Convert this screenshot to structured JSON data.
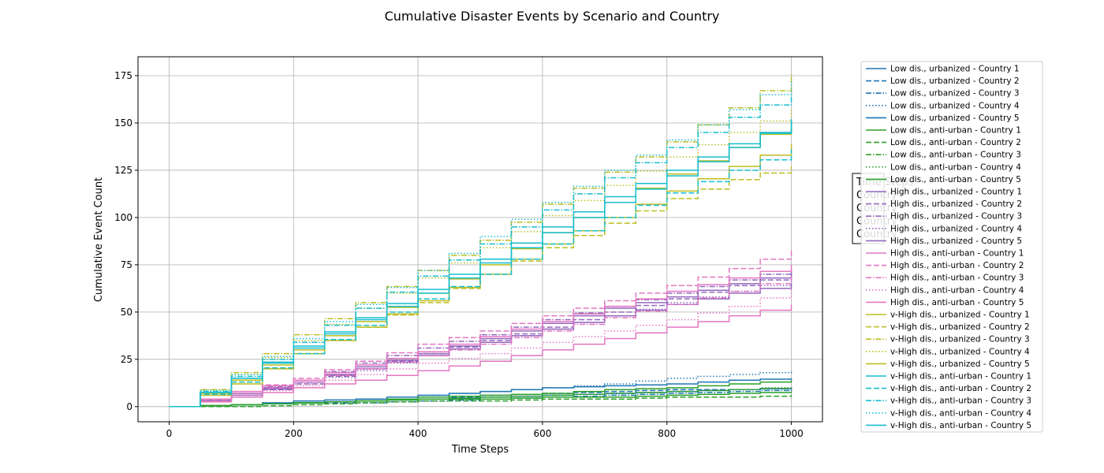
{
  "chart_data": {
    "type": "line",
    "title": "Cumulative Disaster Events by Scenario and Country",
    "xlabel": "Time Steps",
    "ylabel": "Cumulative Event Count",
    "xlim": [
      -50,
      1050
    ],
    "ylim": [
      -8,
      185
    ],
    "x_ticks": [
      0,
      200,
      400,
      600,
      800,
      1000
    ],
    "y_ticks": [
      0,
      25,
      50,
      75,
      100,
      125,
      150,
      175
    ],
    "grid": true,
    "legend_position": "outside-right",
    "side_box": {
      "lines": [
        "Time Steps",
        "Country",
        "Country",
        "Country",
        "Country"
      ]
    },
    "line_styles": {
      "solid": "",
      "dashed": "7,3",
      "dashdot": "7,2,1.5,2",
      "dotted": "1.5,2.5"
    },
    "series": [
      {
        "name": "Low dis., urbanized - Country 1",
        "color": "#1f77b4",
        "dash": "solid",
        "x": [
          0,
          100,
          200,
          300,
          400,
          500,
          600,
          700,
          800,
          900,
          1000
        ],
        "y": [
          0,
          1,
          3,
          4,
          6,
          8,
          10,
          11,
          12,
          14,
          15
        ]
      },
      {
        "name": "Low dis., urbanized - Country 2",
        "color": "#1f77b4",
        "dash": "dashed",
        "x": [
          0,
          100,
          200,
          300,
          400,
          500,
          600,
          700,
          800,
          900,
          1000
        ],
        "y": [
          0,
          1,
          2,
          3,
          4,
          6,
          7,
          8,
          9,
          9,
          10
        ]
      },
      {
        "name": "Low dis., urbanized - Country 3",
        "color": "#1f77b4",
        "dash": "dashdot",
        "x": [
          0,
          100,
          200,
          300,
          400,
          500,
          600,
          700,
          800,
          900,
          1000
        ],
        "y": [
          0,
          1,
          2,
          2,
          3,
          4,
          5,
          6,
          7,
          8,
          9
        ]
      },
      {
        "name": "Low dis., urbanized - Country 4",
        "color": "#1f77b4",
        "dash": "dotted",
        "x": [
          0,
          100,
          200,
          300,
          400,
          500,
          600,
          700,
          800,
          900,
          1000
        ],
        "y": [
          0,
          1,
          3,
          4,
          6,
          8,
          10,
          12,
          15,
          17,
          19
        ]
      },
      {
        "name": "Low dis., urbanized - Country 5",
        "color": "#1f77b4",
        "dash": "solid",
        "x": [
          0,
          100,
          200,
          300,
          400,
          500,
          600,
          700,
          800,
          900,
          1000
        ],
        "y": [
          0,
          1,
          2,
          3,
          4,
          5,
          6,
          7,
          8,
          9,
          10
        ]
      },
      {
        "name": "Low dis., anti-urban - Country 1",
        "color": "#2ca02c",
        "dash": "solid",
        "x": [
          0,
          100,
          200,
          300,
          400,
          500,
          600,
          700,
          800,
          900,
          1000
        ],
        "y": [
          0,
          1,
          2,
          3,
          5,
          6,
          7,
          9,
          10,
          12,
          14
        ]
      },
      {
        "name": "Low dis., anti-urban - Country 2",
        "color": "#2ca02c",
        "dash": "dashed",
        "x": [
          0,
          100,
          200,
          300,
          400,
          500,
          600,
          700,
          800,
          900,
          1000
        ],
        "y": [
          0,
          0,
          1,
          2,
          3,
          3,
          4,
          4,
          5,
          5,
          6
        ]
      },
      {
        "name": "Low dis., anti-urban - Country 3",
        "color": "#2ca02c",
        "dash": "dashdot",
        "x": [
          0,
          100,
          200,
          300,
          400,
          500,
          600,
          700,
          800,
          900,
          1000
        ],
        "y": [
          0,
          1,
          2,
          3,
          4,
          5,
          6,
          7,
          8,
          9,
          10
        ]
      },
      {
        "name": "Low dis., anti-urban - Country 4",
        "color": "#2ca02c",
        "dash": "dotted",
        "x": [
          0,
          100,
          200,
          300,
          400,
          500,
          600,
          700,
          800,
          900,
          1000
        ],
        "y": [
          0,
          1,
          2,
          3,
          4,
          5,
          6,
          7,
          8,
          9,
          11
        ]
      },
      {
        "name": "Low dis., anti-urban - Country 5",
        "color": "#2ca02c",
        "dash": "solid",
        "x": [
          0,
          100,
          200,
          300,
          400,
          500,
          600,
          700,
          800,
          900,
          1000
        ],
        "y": [
          0,
          1,
          2,
          3,
          4,
          4,
          5,
          5,
          6,
          7,
          8
        ]
      },
      {
        "name": "High dis., urbanized - Country 1",
        "color": "#9467bd",
        "dash": "solid",
        "x": [
          0,
          100,
          200,
          300,
          400,
          500,
          600,
          700,
          800,
          900,
          1000
        ],
        "y": [
          0,
          7,
          13,
          21,
          28,
          36,
          44,
          52,
          58,
          65,
          71
        ]
      },
      {
        "name": "High dis., urbanized - Country 2",
        "color": "#9467bd",
        "dash": "dashed",
        "x": [
          0,
          100,
          200,
          300,
          400,
          500,
          600,
          700,
          800,
          900,
          1000
        ],
        "y": [
          0,
          6,
          12,
          20,
          28,
          35,
          42,
          50,
          57,
          64,
          70
        ]
      },
      {
        "name": "High dis., urbanized - Country 3",
        "color": "#9467bd",
        "dash": "dashdot",
        "x": [
          0,
          100,
          200,
          300,
          400,
          500,
          600,
          700,
          800,
          900,
          1000
        ],
        "y": [
          0,
          7,
          14,
          23,
          31,
          38,
          46,
          53,
          60,
          67,
          73
        ]
      },
      {
        "name": "High dis., urbanized - Country 4",
        "color": "#9467bd",
        "dash": "dotted",
        "x": [
          0,
          100,
          200,
          300,
          400,
          500,
          600,
          700,
          800,
          900,
          1000
        ],
        "y": [
          0,
          6,
          12,
          19,
          27,
          34,
          41,
          48,
          55,
          61,
          67
        ]
      },
      {
        "name": "High dis., urbanized - Country 5",
        "color": "#9467bd",
        "dash": "solid",
        "x": [
          0,
          100,
          200,
          300,
          400,
          500,
          600,
          700,
          800,
          900,
          1000
        ],
        "y": [
          0,
          6,
          13,
          20,
          27,
          34,
          41,
          48,
          54,
          60,
          65
        ]
      },
      {
        "name": "High dis., anti-urban - Country 1",
        "color": "#e377c2",
        "dash": "solid",
        "x": [
          0,
          100,
          200,
          300,
          400,
          500,
          600,
          700,
          800,
          900,
          1000
        ],
        "y": [
          0,
          8,
          14,
          22,
          29,
          37,
          45,
          53,
          61,
          68,
          75
        ]
      },
      {
        "name": "High dis., anti-urban - Country 2",
        "color": "#e377c2",
        "dash": "dashed",
        "x": [
          0,
          100,
          200,
          300,
          400,
          500,
          600,
          700,
          800,
          900,
          1000
        ],
        "y": [
          0,
          8,
          15,
          24,
          33,
          40,
          48,
          56,
          64,
          73,
          83
        ]
      },
      {
        "name": "High dis., anti-urban - Country 3",
        "color": "#e377c2",
        "dash": "dashdot",
        "x": [
          0,
          100,
          200,
          300,
          400,
          500,
          600,
          700,
          800,
          900,
          1000
        ],
        "y": [
          0,
          7,
          13,
          20,
          27,
          33,
          40,
          47,
          54,
          61,
          69
        ]
      },
      {
        "name": "High dis., anti-urban - Country 4",
        "color": "#e377c2",
        "dash": "dotted",
        "x": [
          0,
          100,
          200,
          300,
          400,
          500,
          600,
          700,
          800,
          900,
          1000
        ],
        "y": [
          0,
          6,
          11,
          17,
          23,
          28,
          34,
          40,
          46,
          53,
          62
        ]
      },
      {
        "name": "High dis., anti-urban - Country 5",
        "color": "#e377c2",
        "dash": "solid",
        "x": [
          0,
          100,
          200,
          300,
          400,
          500,
          600,
          700,
          800,
          900,
          1000
        ],
        "y": [
          0,
          5,
          10,
          14,
          19,
          24,
          30,
          36,
          42,
          48,
          54
        ]
      },
      {
        "name": "v-High dis., urbanized - Country 1",
        "color": "#bcbd22",
        "dash": "solid",
        "x": [
          0,
          100,
          200,
          300,
          400,
          500,
          600,
          700,
          800,
          900,
          1000
        ],
        "y": [
          0,
          14,
          30,
          45,
          60,
          75,
          92,
          108,
          123,
          137,
          151
        ]
      },
      {
        "name": "v-High dis., urbanized - Country 2",
        "color": "#bcbd22",
        "dash": "dashed",
        "x": [
          0,
          100,
          200,
          300,
          400,
          500,
          600,
          700,
          800,
          900,
          1000
        ],
        "y": [
          0,
          13,
          28,
          42,
          55,
          70,
          84,
          97,
          110,
          120,
          127
        ]
      },
      {
        "name": "v-High dis., urbanized - Country 3",
        "color": "#bcbd22",
        "dash": "dashdot",
        "x": [
          0,
          100,
          200,
          300,
          400,
          500,
          600,
          700,
          800,
          900,
          1000
        ],
        "y": [
          0,
          18,
          38,
          55,
          72,
          88,
          107,
          124,
          140,
          158,
          176
        ]
      },
      {
        "name": "v-High dis., urbanized - Country 4",
        "color": "#bcbd22",
        "dash": "dotted",
        "x": [
          0,
          100,
          200,
          300,
          400,
          500,
          600,
          700,
          800,
          900,
          1000
        ],
        "y": [
          0,
          17,
          35,
          52,
          68,
          84,
          101,
          117,
          132,
          145,
          157
        ]
      },
      {
        "name": "v-High dis., urbanized - Country 5",
        "color": "#bcbd22",
        "dash": "solid",
        "x": [
          0,
          100,
          200,
          300,
          400,
          500,
          600,
          700,
          800,
          900,
          1000
        ],
        "y": [
          0,
          12,
          28,
          42,
          56,
          70,
          86,
          100,
          114,
          127,
          139
        ]
      },
      {
        "name": "v-High dis., anti-urban - Country 1",
        "color": "#17becf",
        "dash": "solid",
        "x": [
          0,
          100,
          200,
          300,
          400,
          500,
          600,
          700,
          800,
          900,
          1000
        ],
        "y": [
          0,
          15,
          31,
          46,
          60,
          76,
          92,
          108,
          122,
          137,
          152
        ]
      },
      {
        "name": "v-High dis., anti-urban - Country 2",
        "color": "#17becf",
        "dash": "dashed",
        "x": [
          0,
          100,
          200,
          300,
          400,
          500,
          600,
          700,
          800,
          900,
          1000
        ],
        "y": [
          0,
          13,
          28,
          43,
          57,
          70,
          86,
          100,
          113,
          125,
          136
        ]
      },
      {
        "name": "v-High dis., anti-urban - Country 3",
        "color": "#17becf",
        "dash": "dashdot",
        "x": [
          0,
          100,
          200,
          300,
          400,
          500,
          600,
          700,
          800,
          900,
          1000
        ],
        "y": [
          0,
          16,
          34,
          52,
          69,
          86,
          104,
          121,
          137,
          153,
          166
        ]
      },
      {
        "name": "v-High dis., anti-urban - Country 4",
        "color": "#17becf",
        "dash": "dotted",
        "x": [
          0,
          100,
          200,
          300,
          400,
          500,
          600,
          700,
          800,
          900,
          1000
        ],
        "y": [
          0,
          17,
          36,
          54,
          72,
          90,
          108,
          125,
          141,
          157,
          173
        ]
      },
      {
        "name": "v-High dis., anti-urban - Country 5",
        "color": "#17becf",
        "dash": "solid",
        "x": [
          0,
          100,
          200,
          300,
          400,
          500,
          600,
          700,
          800,
          900,
          1000
        ],
        "y": [
          0,
          15,
          32,
          47,
          62,
          78,
          95,
          111,
          125,
          139,
          151
        ]
      }
    ]
  }
}
